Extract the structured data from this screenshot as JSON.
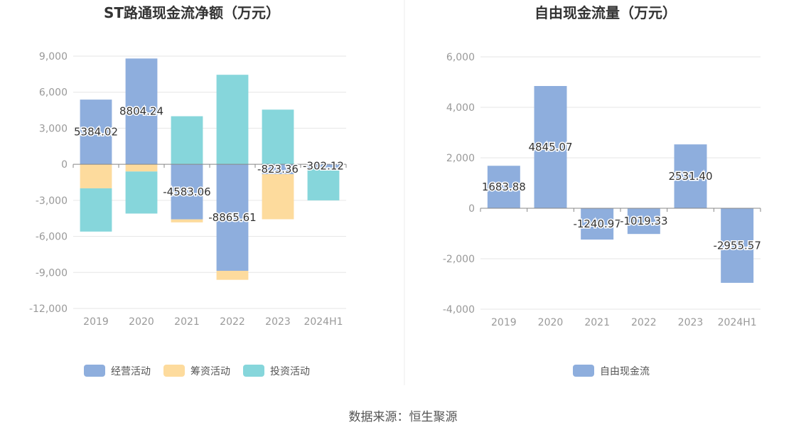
{
  "source_text": "数据来源：恒生聚源",
  "chart_data": [
    {
      "type": "bar",
      "stacked": true,
      "title": "ST路通现金流净额（万元）",
      "categories": [
        "2019",
        "2020",
        "2021",
        "2022",
        "2023",
        "2024H1"
      ],
      "ylim": [
        -12000,
        9000
      ],
      "yticks": [
        9000,
        6000,
        3000,
        0,
        -3000,
        -6000,
        -9000,
        -12000
      ],
      "ytick_labels": [
        "9,000",
        "6,000",
        "3,000",
        "0",
        "-3,000",
        "-6,000",
        "-9,000",
        "-12,000"
      ],
      "grid": true,
      "legend_position": "bottom",
      "label_series": "经营活动",
      "series": [
        {
          "name": "经营活动",
          "color": "#8eaedd",
          "values": [
            5384.02,
            8804.24,
            -4583.06,
            -8865.61,
            -823.36,
            -302.12
          ]
        },
        {
          "name": "筹资活动",
          "color": "#fddb9d",
          "values": [
            -2000,
            -600,
            -250,
            -750,
            -3750,
            0
          ]
        },
        {
          "name": "投资活动",
          "color": "#86d6db",
          "values": [
            -3600,
            -3500,
            4000,
            7450,
            4550,
            -2700
          ]
        }
      ],
      "data_labels": [
        "5384.02",
        "8804.24",
        "-4583.06",
        "-8865.61",
        "-823.36",
        "-302.12"
      ]
    },
    {
      "type": "bar",
      "title": "自由现金流量（万元）",
      "categories": [
        "2019",
        "2020",
        "2021",
        "2022",
        "2023",
        "2024H1"
      ],
      "ylim": [
        -4000,
        6000
      ],
      "yticks": [
        6000,
        4000,
        2000,
        0,
        -2000,
        -4000
      ],
      "ytick_labels": [
        "6,000",
        "4,000",
        "2,000",
        "0",
        "-2,000",
        "-4,000"
      ],
      "grid": true,
      "legend_position": "bottom",
      "series": [
        {
          "name": "自由现金流",
          "color": "#8eaedd",
          "values": [
            1683.88,
            4845.07,
            -1240.97,
            -1019.33,
            2531.4,
            -2955.57
          ]
        }
      ],
      "data_labels": [
        "1683.88",
        "4845.07",
        "-1240.97",
        "-1019.33",
        "2531.40",
        "-2955.57"
      ]
    }
  ]
}
